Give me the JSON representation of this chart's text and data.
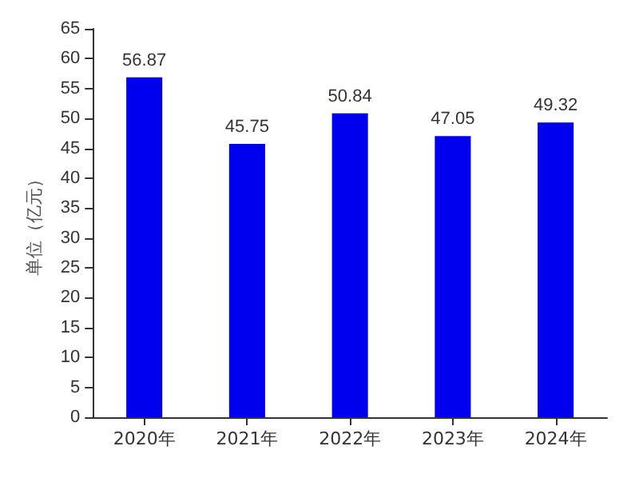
{
  "chart_data": {
    "type": "bar",
    "ylabel": "单位（亿元）",
    "categories": [
      "2020年",
      "2021年",
      "2022年",
      "2023年",
      "2024年"
    ],
    "values": [
      56.87,
      45.75,
      50.84,
      47.05,
      49.32
    ],
    "color": "#0000ee",
    "ylim": [
      0,
      65
    ],
    "yticks": [
      0,
      5,
      10,
      15,
      20,
      25,
      30,
      35,
      40,
      45,
      50,
      55,
      60,
      65
    ],
    "grid": false,
    "data_labels": true
  }
}
